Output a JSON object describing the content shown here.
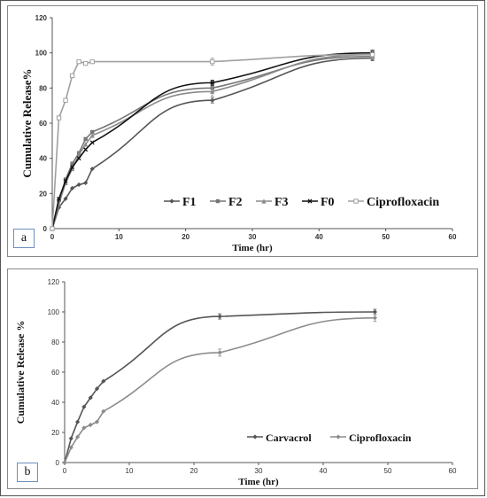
{
  "chart_data": [
    {
      "type": "line",
      "panel_label": "a",
      "xlabel": "Time (hr)",
      "ylabel": "Cumulative Release%",
      "xlim": [
        0,
        60
      ],
      "ylim": [
        0,
        120
      ],
      "xticks": [
        0,
        10,
        20,
        30,
        40,
        50,
        60
      ],
      "yticks": [
        0,
        20,
        40,
        60,
        80,
        100,
        120
      ],
      "grid": false,
      "legend_position": "lower-right",
      "series": [
        {
          "name": "F1",
          "color": "#555555",
          "marker": "diamond",
          "x": [
            0,
            1,
            2,
            3,
            4,
            5,
            6,
            24,
            48
          ],
          "y": [
            0,
            12,
            17,
            23,
            25,
            26,
            34,
            73,
            97
          ]
        },
        {
          "name": "F2",
          "color": "#777777",
          "marker": "square",
          "x": [
            0,
            1,
            2,
            3,
            4,
            5,
            6,
            24,
            48
          ],
          "y": [
            0,
            16,
            28,
            37,
            43,
            51,
            55,
            80,
            98
          ]
        },
        {
          "name": "F3",
          "color": "#8a8a8a",
          "marker": "triangle",
          "x": [
            0,
            1,
            2,
            3,
            4,
            5,
            6,
            24,
            48
          ],
          "y": [
            0,
            14,
            26,
            34,
            42,
            48,
            53,
            78,
            99
          ]
        },
        {
          "name": "F0",
          "color": "#111111",
          "marker": "x",
          "x": [
            0,
            1,
            2,
            3,
            4,
            5,
            6,
            24,
            48
          ],
          "y": [
            0,
            17,
            27,
            35,
            40,
            45,
            49,
            83,
            100
          ]
        },
        {
          "name": "Ciprofloxacin",
          "color": "#a0a0a0",
          "marker": "square-open",
          "x": [
            0,
            1,
            2,
            3,
            4,
            5,
            6,
            24,
            48
          ],
          "y": [
            0,
            63,
            73,
            87,
            95,
            94,
            95,
            95,
            99
          ]
        }
      ]
    },
    {
      "type": "line",
      "panel_label": "b",
      "xlabel": "Time (hr)",
      "ylabel": "Cumulative Release %",
      "xlim": [
        0,
        60
      ],
      "ylim": [
        0,
        120
      ],
      "xticks": [
        0,
        10,
        20,
        30,
        40,
        50,
        60
      ],
      "yticks": [
        0,
        20,
        40,
        60,
        80,
        100,
        120
      ],
      "grid": false,
      "legend_position": "lower-right",
      "series": [
        {
          "name": "Carvacrol",
          "color": "#555555",
          "marker": "diamond",
          "x": [
            0,
            1,
            2,
            3,
            4,
            5,
            6,
            24,
            48
          ],
          "y": [
            0,
            16,
            27,
            37,
            43,
            49,
            54,
            97,
            100
          ]
        },
        {
          "name": "Ciprofloxacin",
          "color": "#8c8c8c",
          "marker": "diamond",
          "x": [
            0,
            1,
            2,
            3,
            4,
            5,
            6,
            24,
            48
          ],
          "y": [
            0,
            10,
            17,
            23,
            25,
            27,
            34,
            73,
            96
          ]
        }
      ]
    }
  ]
}
